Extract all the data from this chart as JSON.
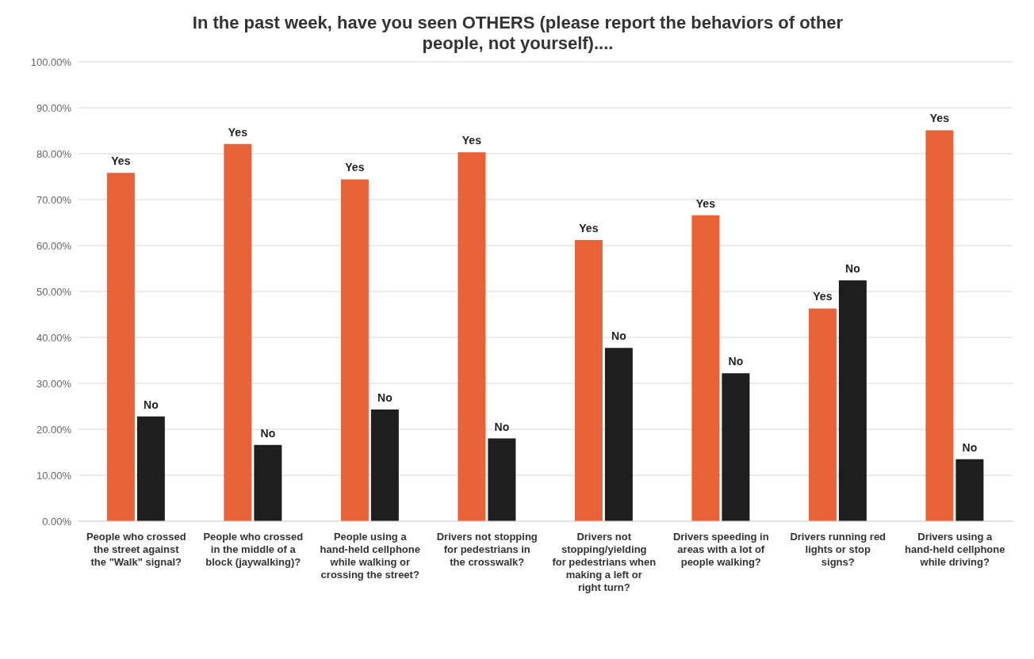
{
  "chart_data": {
    "type": "bar",
    "title": "In the past week, have you seen OTHERS (please report the behaviors of other people, not yourself)....",
    "categories": [
      "People who crossed the street against the \"Walk\" signal?",
      "People who crossed in the middle of a block (jaywalking)?",
      "People using a hand-held cellphone while walking or crossing the street?",
      "Drivers not stopping for pedestrians in the crosswalk?",
      "Drivers not stopping/yielding for pedestrians when making a left or right turn?",
      "Drivers speeding in areas with a lot of people walking?",
      "Drivers running red lights or stop signs?",
      "Drivers using a hand-held cellphone while driving?"
    ],
    "series": [
      {
        "name": "Yes",
        "color": "#e8623a",
        "values": [
          75.8,
          82.1,
          74.4,
          80.3,
          61.2,
          66.6,
          46.3,
          85.1
        ]
      },
      {
        "name": "No",
        "color": "#1e1e1e",
        "values": [
          22.8,
          16.6,
          24.3,
          18.0,
          37.7,
          32.2,
          52.4,
          13.5
        ]
      }
    ],
    "ylim": [
      0,
      100
    ],
    "yticks": [
      {
        "value": 0,
        "label": "0.00%"
      },
      {
        "value": 10,
        "label": "10.00%"
      },
      {
        "value": 20,
        "label": "20.00%"
      },
      {
        "value": 30,
        "label": "30.00%"
      },
      {
        "value": 40,
        "label": "40.00%"
      },
      {
        "value": 50,
        "label": "50.00%"
      },
      {
        "value": 60,
        "label": "60.00%"
      },
      {
        "value": 70,
        "label": "70.00%"
      },
      {
        "value": 80,
        "label": "80.00%"
      },
      {
        "value": 90,
        "label": "90.00%"
      },
      {
        "value": 100,
        "label": "100.00%"
      }
    ],
    "grid": "y",
    "legend": false
  }
}
